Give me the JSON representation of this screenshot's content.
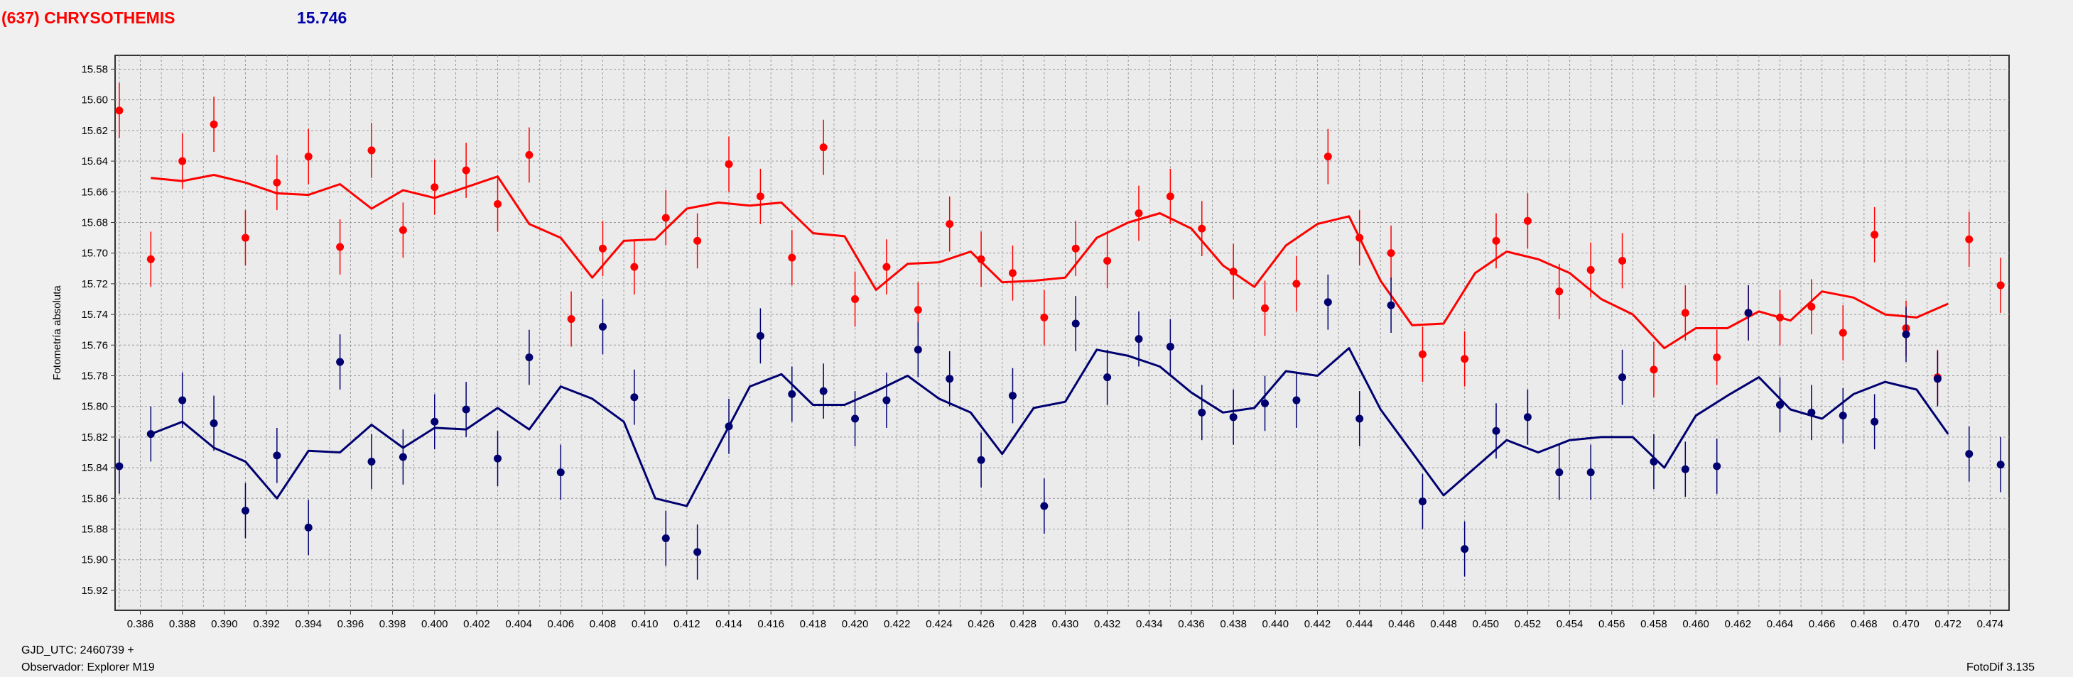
{
  "header": {
    "object_name": "(637) CHRYSOTHEMIS",
    "magnitude": "15.746"
  },
  "footer": {
    "gjd_label": "GJD_UTC: 2460739 +",
    "observer": "Observador: Explorer M19",
    "software": "FotoDif 3.135"
  },
  "chart_data": {
    "type": "scatter",
    "ylabel": "Fotometría absoluta",
    "xlabel": "",
    "xlim": [
      0.3848,
      0.4749
    ],
    "ylim": [
      15.933,
      15.571
    ],
    "y_inverted": true,
    "grid": true,
    "x_ticks": [
      "0.386",
      "0.388",
      "0.390",
      "0.392",
      "0.394",
      "0.396",
      "0.398",
      "0.400",
      "0.402",
      "0.404",
      "0.406",
      "0.408",
      "0.410",
      "0.412",
      "0.414",
      "0.416",
      "0.418",
      "0.420",
      "0.422",
      "0.424",
      "0.426",
      "0.428",
      "0.430",
      "0.432",
      "0.434",
      "0.436",
      "0.438",
      "0.440",
      "0.442",
      "0.444",
      "0.446",
      "0.448",
      "0.450",
      "0.452",
      "0.454",
      "0.456",
      "0.458",
      "0.460",
      "0.462",
      "0.464",
      "0.466",
      "0.468",
      "0.470",
      "0.472",
      "0.474"
    ],
    "y_ticks": [
      "15.58",
      "15.60",
      "15.62",
      "15.64",
      "15.66",
      "15.68",
      "15.70",
      "15.72",
      "15.74",
      "15.76",
      "15.78",
      "15.80",
      "15.82",
      "15.84",
      "15.86",
      "15.88",
      "15.90",
      "15.92"
    ],
    "series": [
      {
        "color": "#ff0000",
        "error": 0.018,
        "points": [
          [
            0.385,
            15.607
          ],
          [
            0.3865,
            15.704
          ],
          [
            0.388,
            15.64
          ],
          [
            0.3895,
            15.616
          ],
          [
            0.391,
            15.69
          ],
          [
            0.3925,
            15.654
          ],
          [
            0.394,
            15.637
          ],
          [
            0.3955,
            15.696
          ],
          [
            0.397,
            15.633
          ],
          [
            0.3985,
            15.685
          ],
          [
            0.4,
            15.657
          ],
          [
            0.4015,
            15.646
          ],
          [
            0.403,
            15.668
          ],
          [
            0.4045,
            15.636
          ],
          [
            0.4065,
            15.743
          ],
          [
            0.408,
            15.697
          ],
          [
            0.4095,
            15.709
          ],
          [
            0.411,
            15.677
          ],
          [
            0.4125,
            15.692
          ],
          [
            0.414,
            15.642
          ],
          [
            0.4155,
            15.663
          ],
          [
            0.417,
            15.703
          ],
          [
            0.4185,
            15.631
          ],
          [
            0.42,
            15.73
          ],
          [
            0.4215,
            15.709
          ],
          [
            0.423,
            15.737
          ],
          [
            0.4245,
            15.681
          ],
          [
            0.426,
            15.704
          ],
          [
            0.4275,
            15.713
          ],
          [
            0.429,
            15.742
          ],
          [
            0.4305,
            15.697
          ],
          [
            0.432,
            15.705
          ],
          [
            0.4335,
            15.674
          ],
          [
            0.435,
            15.663
          ],
          [
            0.4365,
            15.684
          ],
          [
            0.438,
            15.712
          ],
          [
            0.4395,
            15.736
          ],
          [
            0.441,
            15.72
          ],
          [
            0.4425,
            15.637
          ],
          [
            0.444,
            15.69
          ],
          [
            0.4455,
            15.7
          ],
          [
            0.447,
            15.766
          ],
          [
            0.449,
            15.769
          ],
          [
            0.4505,
            15.692
          ],
          [
            0.452,
            15.679
          ],
          [
            0.4535,
            15.725
          ],
          [
            0.455,
            15.711
          ],
          [
            0.4565,
            15.705
          ],
          [
            0.458,
            15.776
          ],
          [
            0.4595,
            15.739
          ],
          [
            0.461,
            15.768
          ],
          [
            0.4625,
            15.739
          ],
          [
            0.464,
            15.742
          ],
          [
            0.4655,
            15.735
          ],
          [
            0.467,
            15.752
          ],
          [
            0.4685,
            15.688
          ],
          [
            0.47,
            15.749
          ],
          [
            0.4715,
            15.781
          ],
          [
            0.473,
            15.691
          ],
          [
            0.4745,
            15.721
          ]
        ]
      },
      {
        "color": "#ff0000",
        "type": "line",
        "points": [
          [
            0.3865,
            15.651
          ],
          [
            0.388,
            15.653
          ],
          [
            0.3895,
            15.649
          ],
          [
            0.391,
            15.654
          ],
          [
            0.3925,
            15.661
          ],
          [
            0.394,
            15.662
          ],
          [
            0.3955,
            15.655
          ],
          [
            0.397,
            15.671
          ],
          [
            0.3985,
            15.659
          ],
          [
            0.4,
            15.664
          ],
          [
            0.4015,
            15.657
          ],
          [
            0.403,
            15.65
          ],
          [
            0.4045,
            15.681
          ],
          [
            0.406,
            15.69
          ],
          [
            0.4075,
            15.716
          ],
          [
            0.409,
            15.692
          ],
          [
            0.4105,
            15.691
          ],
          [
            0.412,
            15.671
          ],
          [
            0.4135,
            15.667
          ],
          [
            0.415,
            15.669
          ],
          [
            0.4165,
            15.667
          ],
          [
            0.418,
            15.687
          ],
          [
            0.4195,
            15.689
          ],
          [
            0.421,
            15.724
          ],
          [
            0.4225,
            15.707
          ],
          [
            0.424,
            15.706
          ],
          [
            0.4255,
            15.699
          ],
          [
            0.427,
            15.719
          ],
          [
            0.4285,
            15.718
          ],
          [
            0.43,
            15.716
          ],
          [
            0.4315,
            15.69
          ],
          [
            0.433,
            15.68
          ],
          [
            0.4345,
            15.674
          ],
          [
            0.436,
            15.684
          ],
          [
            0.4375,
            15.708
          ],
          [
            0.439,
            15.722
          ],
          [
            0.4405,
            15.695
          ],
          [
            0.442,
            15.681
          ],
          [
            0.4435,
            15.676
          ],
          [
            0.445,
            15.718
          ],
          [
            0.4465,
            15.747
          ],
          [
            0.448,
            15.746
          ],
          [
            0.4495,
            15.713
          ],
          [
            0.451,
            15.699
          ],
          [
            0.4525,
            15.704
          ],
          [
            0.454,
            15.713
          ],
          [
            0.4555,
            15.73
          ],
          [
            0.457,
            15.74
          ],
          [
            0.4585,
            15.762
          ],
          [
            0.46,
            15.749
          ],
          [
            0.4615,
            15.749
          ],
          [
            0.463,
            15.738
          ],
          [
            0.4645,
            15.744
          ],
          [
            0.466,
            15.725
          ],
          [
            0.4675,
            15.729
          ],
          [
            0.469,
            15.74
          ],
          [
            0.4705,
            15.742
          ],
          [
            0.472,
            15.733
          ]
        ]
      },
      {
        "color": "#000070",
        "error": 0.018,
        "points": [
          [
            0.385,
            15.839
          ],
          [
            0.3865,
            15.818
          ],
          [
            0.388,
            15.796
          ],
          [
            0.3895,
            15.811
          ],
          [
            0.391,
            15.868
          ],
          [
            0.3925,
            15.832
          ],
          [
            0.394,
            15.879
          ],
          [
            0.3955,
            15.771
          ],
          [
            0.397,
            15.836
          ],
          [
            0.3985,
            15.833
          ],
          [
            0.4,
            15.81
          ],
          [
            0.4015,
            15.802
          ],
          [
            0.403,
            15.834
          ],
          [
            0.4045,
            15.768
          ],
          [
            0.406,
            15.843
          ],
          [
            0.408,
            15.748
          ],
          [
            0.4095,
            15.794
          ],
          [
            0.411,
            15.886
          ],
          [
            0.4125,
            15.895
          ],
          [
            0.414,
            15.813
          ],
          [
            0.4155,
            15.754
          ],
          [
            0.417,
            15.792
          ],
          [
            0.4185,
            15.79
          ],
          [
            0.42,
            15.808
          ],
          [
            0.4215,
            15.796
          ],
          [
            0.423,
            15.763
          ],
          [
            0.4245,
            15.782
          ],
          [
            0.426,
            15.835
          ],
          [
            0.4275,
            15.793
          ],
          [
            0.429,
            15.865
          ],
          [
            0.4305,
            15.746
          ],
          [
            0.432,
            15.781
          ],
          [
            0.4335,
            15.756
          ],
          [
            0.435,
            15.761
          ],
          [
            0.4365,
            15.804
          ],
          [
            0.438,
            15.807
          ],
          [
            0.4395,
            15.798
          ],
          [
            0.441,
            15.796
          ],
          [
            0.4425,
            15.732
          ],
          [
            0.444,
            15.808
          ],
          [
            0.4455,
            15.734
          ],
          [
            0.447,
            15.862
          ],
          [
            0.449,
            15.893
          ],
          [
            0.4505,
            15.816
          ],
          [
            0.452,
            15.807
          ],
          [
            0.4535,
            15.843
          ],
          [
            0.455,
            15.843
          ],
          [
            0.4565,
            15.781
          ],
          [
            0.458,
            15.836
          ],
          [
            0.4595,
            15.841
          ],
          [
            0.461,
            15.839
          ],
          [
            0.4625,
            15.739
          ],
          [
            0.464,
            15.799
          ],
          [
            0.4655,
            15.804
          ],
          [
            0.467,
            15.806
          ],
          [
            0.4685,
            15.81
          ],
          [
            0.47,
            15.753
          ],
          [
            0.4715,
            15.782
          ],
          [
            0.473,
            15.831
          ],
          [
            0.4745,
            15.838
          ]
        ]
      },
      {
        "color": "#000070",
        "type": "line",
        "points": [
          [
            0.3865,
            15.818
          ],
          [
            0.388,
            15.81
          ],
          [
            0.3895,
            15.827
          ],
          [
            0.391,
            15.836
          ],
          [
            0.3925,
            15.86
          ],
          [
            0.394,
            15.829
          ],
          [
            0.3955,
            15.83
          ],
          [
            0.397,
            15.812
          ],
          [
            0.3985,
            15.827
          ],
          [
            0.4,
            15.814
          ],
          [
            0.4015,
            15.815
          ],
          [
            0.403,
            15.801
          ],
          [
            0.4045,
            15.815
          ],
          [
            0.406,
            15.787
          ],
          [
            0.4075,
            15.795
          ],
          [
            0.409,
            15.81
          ],
          [
            0.4105,
            15.86
          ],
          [
            0.412,
            15.865
          ],
          [
            0.4135,
            15.826
          ],
          [
            0.415,
            15.787
          ],
          [
            0.4165,
            15.779
          ],
          [
            0.418,
            15.799
          ],
          [
            0.4195,
            15.799
          ],
          [
            0.421,
            15.79
          ],
          [
            0.4225,
            15.78
          ],
          [
            0.424,
            15.795
          ],
          [
            0.4255,
            15.804
          ],
          [
            0.427,
            15.831
          ],
          [
            0.4285,
            15.801
          ],
          [
            0.43,
            15.797
          ],
          [
            0.4315,
            15.763
          ],
          [
            0.433,
            15.767
          ],
          [
            0.4345,
            15.774
          ],
          [
            0.436,
            15.791
          ],
          [
            0.4375,
            15.804
          ],
          [
            0.439,
            15.801
          ],
          [
            0.4405,
            15.777
          ],
          [
            0.442,
            15.78
          ],
          [
            0.4435,
            15.762
          ],
          [
            0.445,
            15.802
          ],
          [
            0.4465,
            15.83
          ],
          [
            0.448,
            15.858
          ],
          [
            0.4495,
            15.84
          ],
          [
            0.451,
            15.822
          ],
          [
            0.4525,
            15.83
          ],
          [
            0.454,
            15.822
          ],
          [
            0.4555,
            15.82
          ],
          [
            0.457,
            15.82
          ],
          [
            0.4585,
            15.84
          ],
          [
            0.46,
            15.806
          ],
          [
            0.4615,
            15.793
          ],
          [
            0.463,
            15.781
          ],
          [
            0.4645,
            15.802
          ],
          [
            0.466,
            15.808
          ],
          [
            0.4675,
            15.792
          ],
          [
            0.469,
            15.784
          ],
          [
            0.4705,
            15.789
          ],
          [
            0.472,
            15.818
          ]
        ]
      }
    ]
  }
}
